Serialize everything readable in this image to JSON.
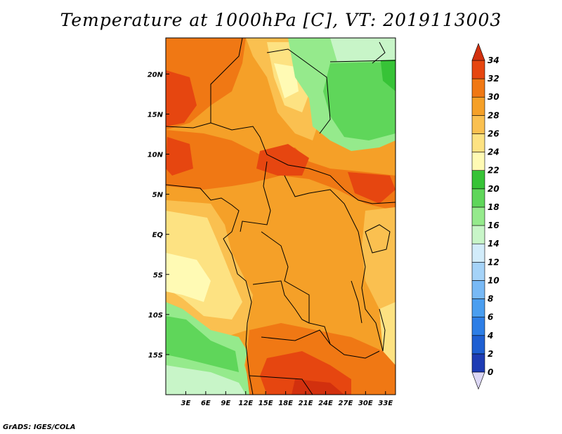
{
  "title": "Temperature at 1000hPa [C], VT: 2019113003",
  "credit": "GrADS: IGES/COLA",
  "map": {
    "lon_range": [
      0,
      34.5
    ],
    "lat_range": [
      -20,
      24.5
    ],
    "lon_ticks": [
      {
        "value": 3,
        "label": "3E"
      },
      {
        "value": 6,
        "label": "6E"
      },
      {
        "value": 9,
        "label": "9E"
      },
      {
        "value": 12,
        "label": "12E"
      },
      {
        "value": 15,
        "label": "15E"
      },
      {
        "value": 18,
        "label": "18E"
      },
      {
        "value": 21,
        "label": "21E"
      },
      {
        "value": 24,
        "label": "24E"
      },
      {
        "value": 27,
        "label": "27E"
      },
      {
        "value": 30,
        "label": "30E"
      },
      {
        "value": 33,
        "label": "33E"
      }
    ],
    "lat_ticks": [
      {
        "value": 20,
        "label": "20N"
      },
      {
        "value": 15,
        "label": "15N"
      },
      {
        "value": 10,
        "label": "10N"
      },
      {
        "value": 5,
        "label": "5N"
      },
      {
        "value": 0,
        "label": "EQ"
      },
      {
        "value": -5,
        "label": "5S"
      },
      {
        "value": -10,
        "label": "10S"
      },
      {
        "value": -15,
        "label": "15S"
      }
    ]
  },
  "colorbar": {
    "labels": [
      "0",
      "2",
      "4",
      "6",
      "8",
      "10",
      "12",
      "14",
      "16",
      "18",
      "20",
      "22",
      "24",
      "26",
      "28",
      "30",
      "32",
      "34"
    ],
    "colors": [
      "#1c0f7a",
      "#1e3cb4",
      "#1e5fd2",
      "#2d7ee6",
      "#4a9ef0",
      "#78b9f5",
      "#a5d3f8",
      "#d2ecfa",
      "#c8f5c8",
      "#95ea8c",
      "#5fd65a",
      "#37c337",
      "#fffab4",
      "#fde282",
      "#fac050",
      "#f5a028",
      "#f07814",
      "#e64610",
      "#c81e0a"
    ],
    "under_color": "#dcd7f5",
    "over_color": "#d2300e"
  }
}
